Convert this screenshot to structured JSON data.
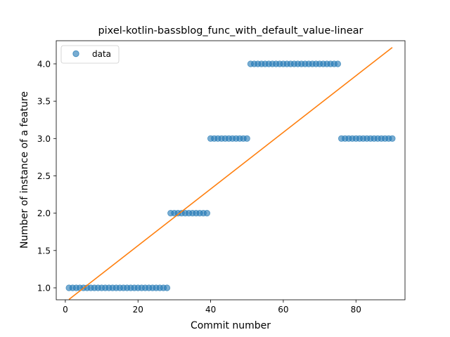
{
  "chart_data": {
    "type": "scatter",
    "title": "pixel-kotlin-bassblog_func_with_default_value-linear",
    "xlabel": "Commit number",
    "ylabel": "Number of instance of a feature",
    "xlim": [
      -2.5,
      93.5
    ],
    "ylim": [
      0.84,
      4.31
    ],
    "xticks": [
      0,
      20,
      40,
      60,
      80
    ],
    "yticks": [
      1.0,
      1.5,
      2.0,
      2.5,
      3.0,
      3.5,
      4.0
    ],
    "xtick_labels": [
      "0",
      "20",
      "40",
      "60",
      "80"
    ],
    "ytick_labels": [
      "1.0",
      "1.5",
      "2.0",
      "2.5",
      "3.0",
      "3.5",
      "4.0"
    ],
    "grid": false,
    "legend": {
      "position": "top-left",
      "entries": [
        "data"
      ]
    },
    "series": [
      {
        "name": "data",
        "kind": "scatter",
        "color": "#1f77b4",
        "x": [
          1,
          2,
          3,
          4,
          5,
          6,
          7,
          8,
          9,
          10,
          11,
          12,
          13,
          14,
          15,
          16,
          17,
          18,
          19,
          20,
          21,
          22,
          23,
          24,
          25,
          26,
          27,
          28,
          29,
          30,
          31,
          32,
          33,
          34,
          35,
          36,
          37,
          38,
          39,
          40,
          41,
          42,
          43,
          44,
          45,
          46,
          47,
          48,
          49,
          50,
          51,
          52,
          53,
          54,
          55,
          56,
          57,
          58,
          59,
          60,
          61,
          62,
          63,
          64,
          65,
          66,
          67,
          68,
          69,
          70,
          71,
          72,
          73,
          74,
          75,
          76,
          77,
          78,
          79,
          80,
          81,
          82,
          83,
          84,
          85,
          86,
          87,
          88,
          89,
          90
        ],
        "y": [
          1,
          1,
          1,
          1,
          1,
          1,
          1,
          1,
          1,
          1,
          1,
          1,
          1,
          1,
          1,
          1,
          1,
          1,
          1,
          1,
          1,
          1,
          1,
          1,
          1,
          1,
          1,
          1,
          2,
          2,
          2,
          2,
          2,
          2,
          2,
          2,
          2,
          2,
          2,
          3,
          3,
          3,
          3,
          3,
          3,
          3,
          3,
          3,
          3,
          3,
          4,
          4,
          4,
          4,
          4,
          4,
          4,
          4,
          4,
          4,
          4,
          4,
          4,
          4,
          4,
          4,
          4,
          4,
          4,
          4,
          4,
          4,
          4,
          4,
          4,
          3,
          3,
          3,
          3,
          3,
          3,
          3,
          3,
          3,
          3,
          3,
          3,
          3,
          3,
          3
        ]
      },
      {
        "kind": "line",
        "color": "#ff7f0e",
        "x": [
          1,
          90
        ],
        "y": [
          0.845,
          4.22
        ]
      }
    ]
  }
}
